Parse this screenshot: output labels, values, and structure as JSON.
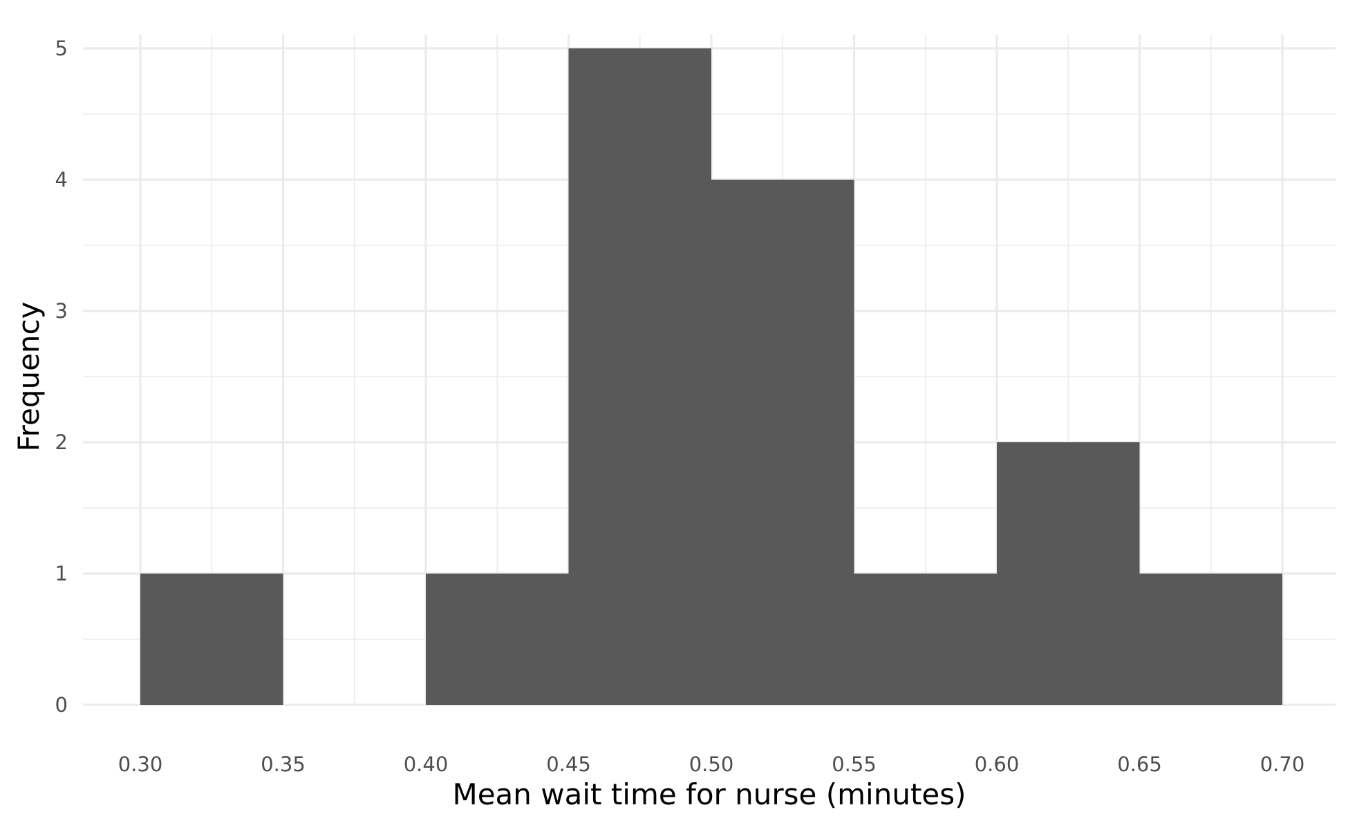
{
  "chart_data": {
    "type": "bar",
    "subtype": "histogram",
    "title": "",
    "xlabel": "Mean wait time for nurse (minutes)",
    "ylabel": "Frequency",
    "bins": [
      {
        "start": 0.3,
        "end": 0.35,
        "count": 1
      },
      {
        "start": 0.35,
        "end": 0.4,
        "count": 0
      },
      {
        "start": 0.4,
        "end": 0.45,
        "count": 1
      },
      {
        "start": 0.45,
        "end": 0.5,
        "count": 5
      },
      {
        "start": 0.5,
        "end": 0.55,
        "count": 4
      },
      {
        "start": 0.55,
        "end": 0.6,
        "count": 1
      },
      {
        "start": 0.6,
        "end": 0.65,
        "count": 2
      },
      {
        "start": 0.65,
        "end": 0.7,
        "count": 1
      }
    ],
    "x_ticks": [
      "0.30",
      "0.35",
      "0.40",
      "0.45",
      "0.50",
      "0.55",
      "0.60",
      "0.65",
      "0.70"
    ],
    "y_ticks": [
      "0",
      "1",
      "2",
      "3",
      "4",
      "5"
    ],
    "xlim": [
      0.28,
      0.72
    ],
    "ylim": [
      0,
      5
    ],
    "grid": true,
    "legend": "none",
    "bar_color": "#595959",
    "grid_color": "#ebebeb",
    "background_color": "#ffffff"
  }
}
